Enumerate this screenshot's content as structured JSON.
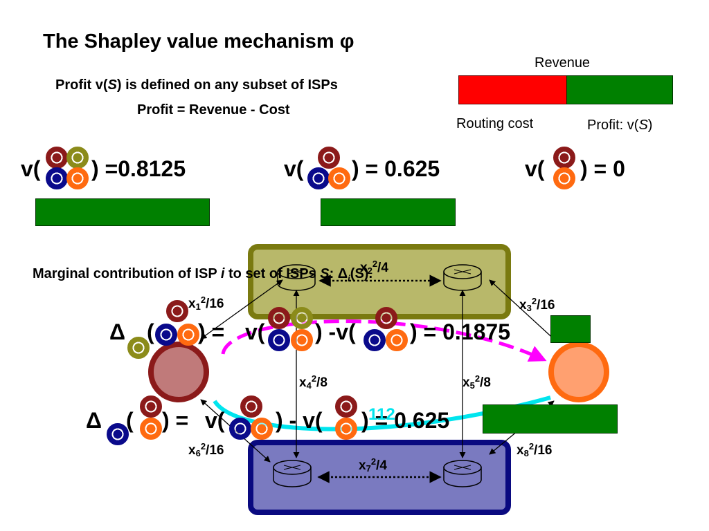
{
  "title": "The Shapley value mechanism φ",
  "definition": {
    "line1_prefix": "Profit v(",
    "line1_var": "S",
    "line1_suffix": ") is defined on any subset of ISPs",
    "line2": "Profit = Revenue - Cost"
  },
  "revenue_bar": {
    "header": "Revenue",
    "cost_label": "Routing cost",
    "profit_label_prefix": "Profit: v(",
    "profit_label_var": "S",
    "profit_label_suffix": ")",
    "cost_color": "#ff0000",
    "profit_color": "#008000"
  },
  "coalitions": [
    {
      "open": "v(",
      "close": ") =0.8125"
    },
    {
      "open": "v(",
      "close": ") = 0.625"
    },
    {
      "open": "v(",
      "close": ") = 0"
    }
  ],
  "marginal": {
    "text_prefix": "Marginal contribution of ISP ",
    "text_var_i": "i",
    "text_mid": " to set of ISPs ",
    "text_var_S": "S",
    "text_colon": ": ",
    "text_delta": "Δ",
    "text_sub": "i",
    "text_suffix": "(S)."
  },
  "equations": [
    {
      "delta": "Δ",
      "open": "(",
      "eq": ") = ",
      "v1": "v(",
      "mid": ") -v(",
      "result": ") = 0.1875"
    },
    {
      "delta": "Δ",
      "open": "(",
      "eq": ") = ",
      "v1": "v(",
      "mid": ") - v(",
      "result": ") = 0.625"
    }
  ],
  "overlay_digits": "112",
  "edges": {
    "e1": {
      "x": "x",
      "sub": "1",
      "rest": "/16"
    },
    "e2": {
      "x": "x",
      "sub": "2",
      "rest": "/4"
    },
    "e3": {
      "x": "x",
      "sub": "3",
      "rest": "/16"
    },
    "e4": {
      "x": "x",
      "sub": "4",
      "rest": "/8"
    },
    "e5": {
      "x": "x",
      "sub": "5",
      "rest": "/8"
    },
    "e6": {
      "x": "x",
      "sub": "6",
      "rest": "/16"
    },
    "e7": {
      "x": "x",
      "sub": "7",
      "rest": "/4"
    },
    "e8": {
      "x": "x",
      "sub": "8",
      "rest": "/16"
    },
    "sup": "2"
  },
  "isp_colors": {
    "dark_red": "#8b1a1a",
    "olive": "#8b8b1a",
    "navy": "#0a0a8b",
    "orange": "#ff6a10"
  },
  "top_isp_fill": "#b8b86a",
  "top_isp_border": "#7a7a10",
  "bottom_isp_fill": "#7a7ac0",
  "bottom_isp_border": "#0a0a80"
}
